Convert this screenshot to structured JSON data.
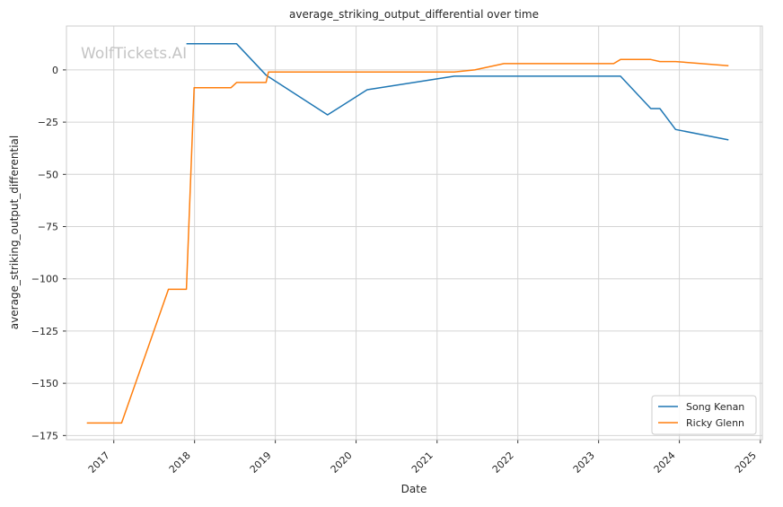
{
  "watermark": "WolfTickets.AI",
  "chart_data": {
    "type": "line",
    "title": "average_striking_output_differential over time",
    "xlabel": "Date",
    "ylabel": "average_striking_output_differential",
    "xlim": [
      "2016-06-01",
      "2025-01-10"
    ],
    "ylim": [
      -177,
      21
    ],
    "x_ticks": [
      "2017",
      "2018",
      "2019",
      "2020",
      "2021",
      "2022",
      "2023",
      "2024",
      "2025"
    ],
    "y_ticks": [
      0,
      -25,
      -50,
      -75,
      -100,
      -125,
      -150,
      -175
    ],
    "y_tick_labels": [
      "0",
      "−25",
      "−50",
      "−75",
      "−100",
      "−125",
      "−150",
      "−175"
    ],
    "grid": true,
    "legend_position": "bottom-right",
    "series": [
      {
        "name": "Song Kenan",
        "color": "#1f77b4",
        "points": [
          {
            "x": "2017-11-25",
            "y": 12.5
          },
          {
            "x": "2018-07-10",
            "y": 12.5
          },
          {
            "x": "2018-11-20",
            "y": -2.5
          },
          {
            "x": "2019-08-25",
            "y": -21.5
          },
          {
            "x": "2020-02-20",
            "y": -9.5
          },
          {
            "x": "2021-03-20",
            "y": -3
          },
          {
            "x": "2023-04-10",
            "y": -3
          },
          {
            "x": "2023-08-25",
            "y": -18.5
          },
          {
            "x": "2023-10-05",
            "y": -18.5
          },
          {
            "x": "2023-12-15",
            "y": -28.5
          },
          {
            "x": "2024-08-10",
            "y": -33.5
          }
        ]
      },
      {
        "name": "Ricky Glenn",
        "color": "#ff7f0e",
        "points": [
          {
            "x": "2016-09-01",
            "y": -169
          },
          {
            "x": "2017-02-05",
            "y": -169
          },
          {
            "x": "2017-09-05",
            "y": -105
          },
          {
            "x": "2017-11-25",
            "y": -105
          },
          {
            "x": "2017-12-30",
            "y": -8.5
          },
          {
            "x": "2018-06-15",
            "y": -8.5
          },
          {
            "x": "2018-07-10",
            "y": -6
          },
          {
            "x": "2018-11-20",
            "y": -6
          },
          {
            "x": "2018-12-01",
            "y": -1
          },
          {
            "x": "2021-03-20",
            "y": -1
          },
          {
            "x": "2021-06-20",
            "y": 0
          },
          {
            "x": "2021-10-30",
            "y": 3
          },
          {
            "x": "2023-03-10",
            "y": 3
          },
          {
            "x": "2023-04-10",
            "y": 5
          },
          {
            "x": "2023-08-25",
            "y": 5
          },
          {
            "x": "2023-10-05",
            "y": 4
          },
          {
            "x": "2023-12-15",
            "y": 4
          },
          {
            "x": "2024-08-10",
            "y": 2
          }
        ]
      }
    ]
  }
}
